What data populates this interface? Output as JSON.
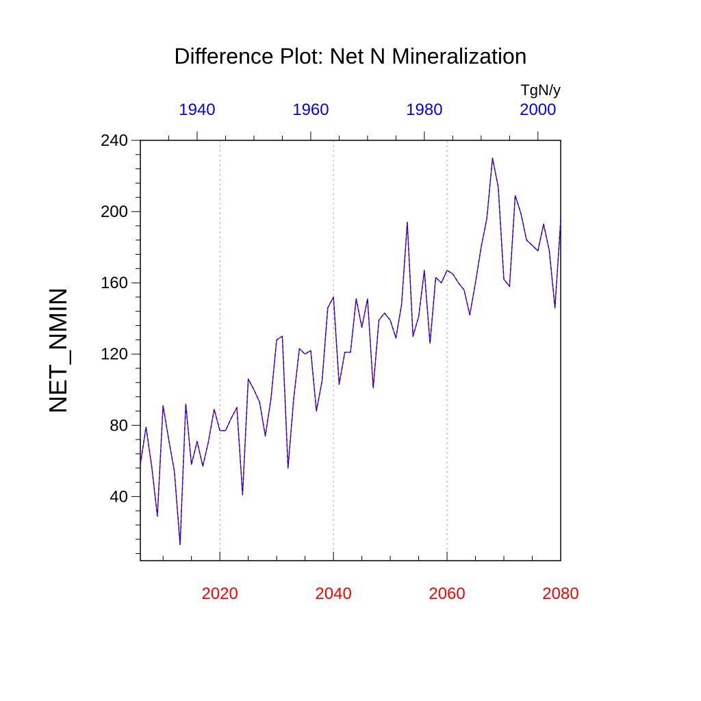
{
  "chart_data": {
    "type": "line",
    "title": "Difference Plot: Net N Mineralization",
    "ylabel": "NET_NMIN",
    "units": "TgN/y",
    "bottom_axis": {
      "color": "#ff0000",
      "range": [
        2006,
        2080
      ],
      "ticks": [
        2020,
        2040,
        2060,
        2080
      ],
      "tick_labels": [
        "2020",
        "2040",
        "2060",
        "2080"
      ]
    },
    "top_axis": {
      "color": "#0000ff",
      "range": [
        1930,
        2004
      ],
      "ticks": [
        1940,
        1960,
        1980,
        2000
      ],
      "tick_labels": [
        "1940",
        "1960",
        "1980",
        "2000"
      ]
    },
    "y_axis": {
      "range": [
        4,
        240
      ],
      "ticks": [
        40,
        80,
        120,
        160,
        200,
        240
      ],
      "tick_labels": [
        "40",
        "80",
        "120",
        "160",
        "200",
        "240"
      ]
    },
    "grid": "vertical dotted at bottom-axis major ticks",
    "series": [
      {
        "name": "NET_NMIN difference",
        "line_color": "#800080",
        "dash_color": "#0000ff",
        "x": [
          2006,
          2007,
          2008,
          2009,
          2010,
          2011,
          2012,
          2013,
          2014,
          2015,
          2016,
          2017,
          2018,
          2019,
          2020,
          2021,
          2022,
          2023,
          2024,
          2025,
          2026,
          2027,
          2028,
          2029,
          2030,
          2031,
          2032,
          2033,
          2034,
          2035,
          2036,
          2037,
          2038,
          2039,
          2040,
          2041,
          2042,
          2043,
          2044,
          2045,
          2046,
          2047,
          2048,
          2049,
          2050,
          2051,
          2052,
          2053,
          2054,
          2055,
          2056,
          2057,
          2058,
          2059,
          2060,
          2061,
          2062,
          2063,
          2064,
          2065,
          2066,
          2067,
          2068,
          2069,
          2070,
          2071,
          2072,
          2073,
          2074,
          2075,
          2076,
          2077,
          2078,
          2079,
          2080
        ],
        "values": [
          58,
          79,
          57,
          29,
          91,
          72,
          54,
          13,
          92,
          58,
          71,
          57,
          71,
          89,
          77,
          77,
          84,
          90,
          41,
          106,
          100,
          93,
          74,
          95,
          128,
          130,
          56,
          95,
          123,
          120,
          122,
          88,
          105,
          146,
          152,
          103,
          121,
          121,
          151,
          135,
          151,
          101,
          139,
          143,
          139,
          129,
          148,
          194,
          130,
          141,
          167,
          126,
          163,
          160,
          167,
          165,
          160,
          156,
          142,
          160,
          180,
          196,
          230,
          214,
          162,
          158,
          209,
          199,
          184,
          181,
          178,
          193,
          178,
          146,
          195
        ]
      }
    ]
  }
}
